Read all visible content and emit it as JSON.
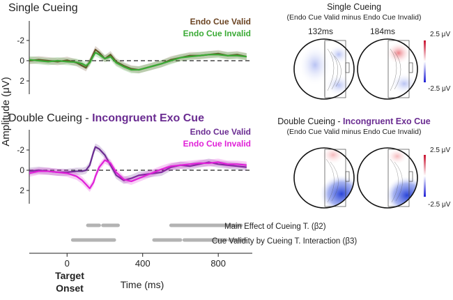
{
  "colors": {
    "endo_valid_single": "#6b4423",
    "endo_invalid_single": "#3aaa35",
    "endo_valid_double": "#6a2c91",
    "endo_invalid_double": "#e020d8",
    "double_title_accent": "#6a2c91",
    "significance_bars": "#b3b3b3",
    "topo_positive": "#d62728",
    "topo_negative": "#1f3bd6"
  },
  "chart_data": [
    {
      "type": "line",
      "panel": "single",
      "title": "Single Cueing",
      "ylabel": "Amplitude (μV)",
      "ylim": [
        -3.4,
        3.2
      ],
      "y_inverted": true,
      "yticks": [
        "-2",
        "0",
        "2"
      ],
      "ytick_values": [
        -2,
        0,
        2
      ],
      "xlim": [
        -200,
        980
      ],
      "series": [
        {
          "name": "Endo Cue Valid",
          "x": [
            -200,
            -150,
            -100,
            -50,
            0,
            50,
            80,
            100,
            120,
            140,
            150,
            170,
            200,
            230,
            260,
            300,
            340,
            380,
            420,
            460,
            500,
            550,
            600,
            650,
            700,
            750,
            800,
            850,
            900,
            950
          ],
          "y": [
            0,
            -0.1,
            0,
            0.1,
            -0.05,
            0.2,
            0.5,
            0.7,
            0.1,
            -0.7,
            -1.1,
            -0.8,
            -0.2,
            -0.6,
            0.1,
            0.5,
            0.8,
            0.9,
            0.7,
            0.5,
            0.3,
            -0.1,
            -0.3,
            -0.5,
            -0.5,
            -0.6,
            -0.7,
            -0.5,
            -0.6,
            -0.4
          ]
        },
        {
          "name": "Endo Cue Invalid",
          "x": [
            -200,
            -150,
            -100,
            -50,
            0,
            50,
            80,
            100,
            120,
            140,
            150,
            170,
            200,
            230,
            260,
            300,
            340,
            380,
            420,
            460,
            500,
            550,
            600,
            650,
            700,
            750,
            800,
            850,
            900,
            950
          ],
          "y": [
            -0.1,
            0,
            0.1,
            0,
            0.1,
            0.15,
            0.3,
            0.5,
            0.2,
            -0.5,
            -0.8,
            -0.6,
            -0.2,
            -0.4,
            0.2,
            0.6,
            0.9,
            0.9,
            0.7,
            0.5,
            0.3,
            0,
            -0.3,
            -0.4,
            -0.5,
            -0.6,
            -0.6,
            -0.5,
            -0.5,
            -0.4
          ]
        }
      ]
    },
    {
      "type": "line",
      "panel": "double",
      "title": "Double Cueing - ",
      "title_accent": "Incongruent Exo Cue",
      "ylabel": "Amplitude (μV)",
      "ylim": [
        -3.4,
        3.2
      ],
      "y_inverted": true,
      "yticks": [
        "-2",
        "0",
        "2"
      ],
      "ytick_values": [
        -2,
        0,
        2
      ],
      "xlim": [
        -200,
        980
      ],
      "series": [
        {
          "name": "Endo Cue Valid",
          "x": [
            -200,
            -150,
            -100,
            -50,
            0,
            50,
            80,
            100,
            120,
            140,
            150,
            170,
            200,
            230,
            260,
            300,
            340,
            380,
            420,
            460,
            500,
            550,
            600,
            650,
            700,
            750,
            800,
            850,
            900,
            950
          ],
          "y": [
            0.1,
            0,
            0.1,
            0.2,
            0.2,
            0.1,
            0.1,
            0,
            -0.5,
            -1.8,
            -2.3,
            -2.1,
            -1.5,
            -0.5,
            0.5,
            1.0,
            0.8,
            0.5,
            0.4,
            0.3,
            0.2,
            -0.3,
            -0.5,
            -0.4,
            -0.6,
            -0.8,
            -0.6,
            -0.5,
            -0.4,
            -0.3
          ]
        },
        {
          "name": "Endo Cue Invalid",
          "x": [
            -200,
            -150,
            -100,
            -50,
            0,
            50,
            80,
            100,
            120,
            140,
            150,
            170,
            200,
            230,
            260,
            300,
            340,
            380,
            420,
            460,
            500,
            550,
            600,
            650,
            700,
            750,
            800,
            850,
            900,
            950
          ],
          "y": [
            0.3,
            0.1,
            0.1,
            0.2,
            0.3,
            0.6,
            1.0,
            1.4,
            1.8,
            1.2,
            0.6,
            -0.3,
            -1.0,
            -0.7,
            0.2,
            0.9,
            1.1,
            0.8,
            0.5,
            0.2,
            -0.1,
            -0.4,
            -0.5,
            -0.6,
            -0.7,
            -0.7,
            -0.8,
            -0.6,
            -0.6,
            -0.5
          ]
        }
      ]
    }
  ],
  "topomaps": {
    "single": {
      "title": "Single Cueing",
      "subtitle": "(Endo Cue Valid minus Endo Cue Invalid)",
      "times": [
        "132ms",
        "184ms"
      ],
      "scale_max": "2.5 μV",
      "scale_min": "-2.5 μV"
    },
    "double": {
      "title": "Double Cueing - ",
      "title_accent": "Incongruent Exo Cue",
      "subtitle": "(Endo Cue Valid minus Endo Cue Invalid)",
      "scale_max": "2.5 μV",
      "scale_min": "-2.5 μV"
    }
  },
  "significance": {
    "rows": [
      {
        "label": "Main Effect of Cueing T. (β2)",
        "segments": [
          [
            110,
            170
          ],
          [
            190,
            270
          ],
          [
            550,
            920
          ]
        ]
      },
      {
        "label": "Cue Validity by Cueing T. Interaction (β3)",
        "segments": [
          [
            30,
            250
          ],
          [
            460,
            600
          ],
          [
            620,
            840
          ],
          [
            860,
            940
          ]
        ]
      }
    ]
  },
  "xaxis": {
    "ticks": [
      "0",
      "400",
      "800"
    ],
    "tick_values": [
      0,
      400,
      800
    ],
    "label": "Time (ms)",
    "onset_line1": "Target",
    "onset_line2": "Onset"
  }
}
